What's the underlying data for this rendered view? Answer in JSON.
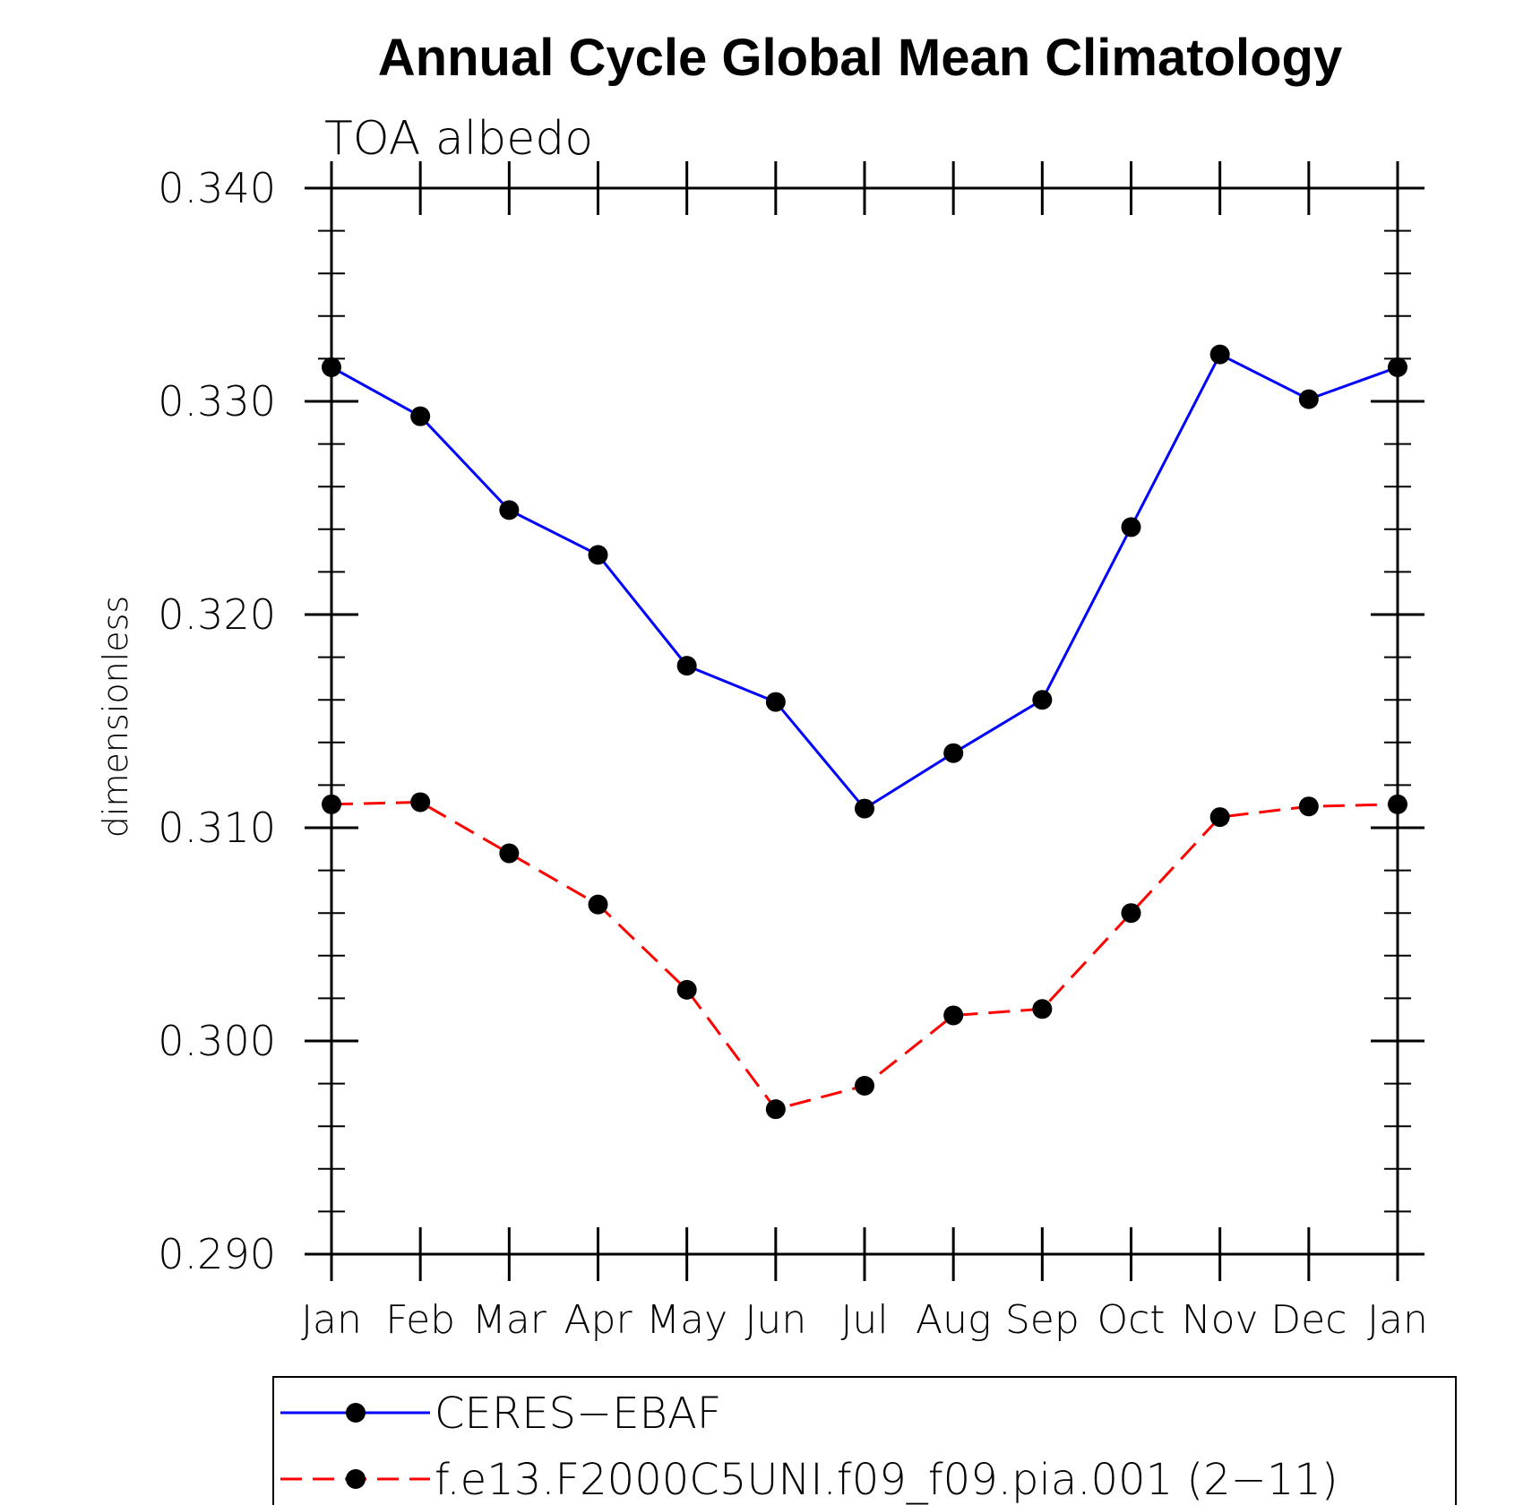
{
  "chart_data": {
    "type": "line",
    "title": "Annual Cycle Global Mean Climatology",
    "subtitle": "TOA albedo",
    "xlabel": "",
    "ylabel": "dimensionless",
    "categories": [
      "Jan",
      "Feb",
      "Mar",
      "Apr",
      "May",
      "Jun",
      "Jul",
      "Aug",
      "Sep",
      "Oct",
      "Nov",
      "Dec",
      "Jan"
    ],
    "ylim": [
      0.29,
      0.34
    ],
    "yticks": [
      "0.290",
      "0.300",
      "0.310",
      "0.320",
      "0.330",
      "0.340"
    ],
    "ytick_values": [
      0.29,
      0.3,
      0.31,
      0.32,
      0.33,
      0.34
    ],
    "y_minor_step": 0.002,
    "grid": false,
    "legend_position": "bottom",
    "series": [
      {
        "name": "CERES−EBAF",
        "color": "#0000ff",
        "line_style": "solid",
        "marker": "filled-circle",
        "values": [
          0.3316,
          0.3293,
          0.3249,
          0.3228,
          0.3176,
          0.3159,
          0.3109,
          0.3135,
          0.316,
          0.3241,
          0.3322,
          0.3301,
          0.3316
        ]
      },
      {
        "name": "f.e13.F2000C5UNI.f09_f09.pia.001 (2−11)",
        "color": "#ff0000",
        "line_style": "dashed",
        "marker": "filled-circle",
        "values": [
          0.3111,
          0.3112,
          0.3088,
          0.3064,
          0.3024,
          0.2968,
          0.2979,
          0.3012,
          0.3015,
          0.306,
          0.3105,
          0.311,
          0.3111
        ]
      }
    ],
    "marker_color": "#000000"
  }
}
